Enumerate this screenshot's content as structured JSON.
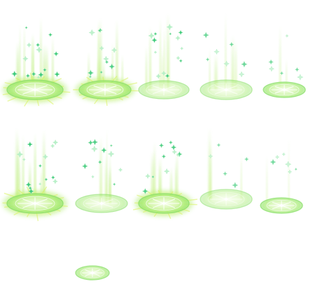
{
  "sprite_sheet": {
    "colors": {
      "background": "#ffffff",
      "glow_inner": "#fffbd2",
      "glow_mid": "#d8f25a",
      "glow_outer": "#a9ec7a",
      "ring": "#8ee06c",
      "beam": "#b6ec7e",
      "beam_core": "#f2ffd8",
      "sparkle": "#3fca7c",
      "sparkle_light": "#b8f0c8"
    },
    "frames": [
      {
        "intensity": 1.0,
        "beams": 1.0,
        "sparkles": 1.0,
        "burst": true
      },
      {
        "intensity": 0.95,
        "beams": 0.85,
        "sparkles": 0.8,
        "burst": true
      },
      {
        "intensity": 0.45,
        "beams": 0.7,
        "sparkles": 1.0,
        "burst": false
      },
      {
        "intensity": 0.4,
        "beams": 0.5,
        "sparkles": 0.5,
        "burst": false
      },
      {
        "intensity": 0.85,
        "beams": 0.25,
        "sparkles": 0.45,
        "burst": false
      },
      {
        "intensity": 1.0,
        "beams": 1.0,
        "sparkles": 1.0,
        "burst": true
      },
      {
        "intensity": 0.45,
        "beams": 0.65,
        "sparkles": 0.8,
        "burst": false
      },
      {
        "intensity": 0.95,
        "beams": 0.75,
        "sparkles": 0.8,
        "burst": true
      },
      {
        "intensity": 0.35,
        "beams": 0.35,
        "sparkles": 0.35,
        "burst": false
      },
      {
        "intensity": 0.85,
        "beams": 0.2,
        "sparkles": 0.4,
        "burst": false
      },
      {
        "intensity": 0.75,
        "beams": 0.0,
        "sparkles": 0.0,
        "burst": false
      }
    ]
  }
}
